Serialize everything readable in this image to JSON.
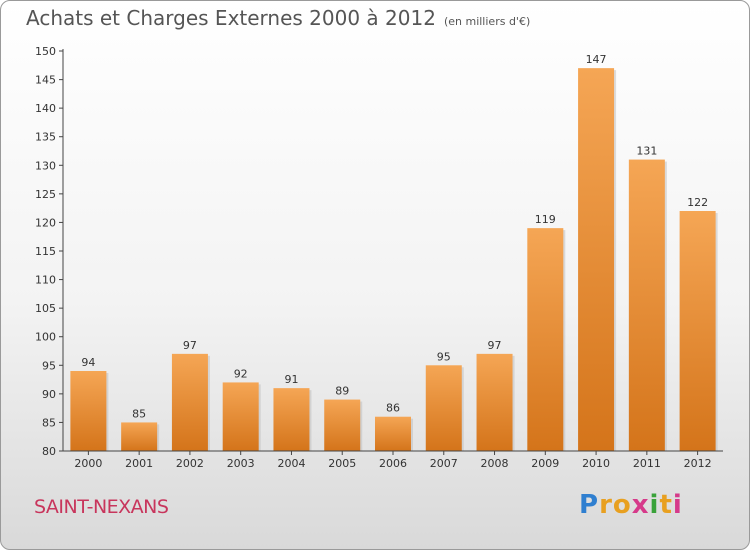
{
  "title": "Achats et Charges Externes 2000 à 2012",
  "unit_note": "(en milliers d'€)",
  "commune": "SAINT-NEXANS",
  "logo": {
    "letters": [
      "P",
      "r",
      "o",
      "x",
      "i",
      "t",
      "i"
    ],
    "colors": [
      "#2f7fd0",
      "#e8a020",
      "#e8a020",
      "#d63a8a",
      "#3aa23a",
      "#e8a020",
      "#d63a8a"
    ]
  },
  "colors": {
    "bar_top": "#f5a655",
    "bar_bottom": "#d4741a",
    "axis": "#444444"
  },
  "chart_data": {
    "type": "bar",
    "categories": [
      "2000",
      "2001",
      "2002",
      "2003",
      "2004",
      "2005",
      "2006",
      "2007",
      "2008",
      "2009",
      "2010",
      "2011",
      "2012"
    ],
    "values": [
      94,
      85,
      97,
      92,
      91,
      89,
      86,
      95,
      97,
      119,
      147,
      131,
      122
    ],
    "ylim": [
      80,
      150
    ],
    "yticks": [
      80,
      85,
      90,
      95,
      100,
      105,
      110,
      115,
      120,
      125,
      130,
      135,
      140,
      145,
      150
    ],
    "grid": false,
    "legend": "none"
  }
}
